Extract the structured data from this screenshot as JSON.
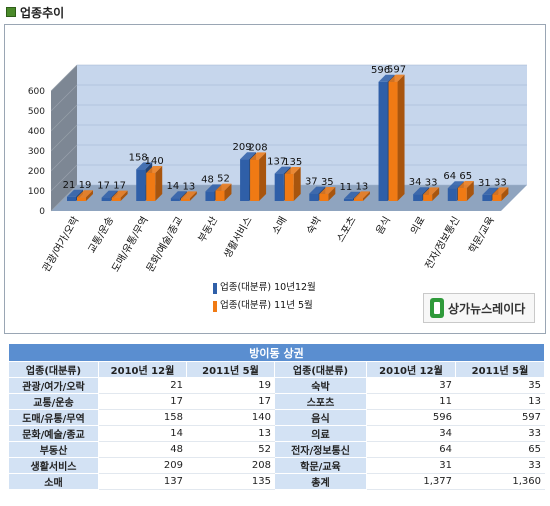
{
  "header": {
    "title": "업종추이"
  },
  "chart_data": {
    "type": "bar",
    "categories": [
      "관광/여가/오락",
      "교통/운송",
      "도매/유통/무역",
      "문화/예술/종교",
      "부동산",
      "생활서비스",
      "소매",
      "숙박",
      "스포츠",
      "음식",
      "의료",
      "전자/정보통신",
      "학문/교육"
    ],
    "series": [
      {
        "name": "업종(대분류) 10년12월",
        "values": [
          21,
          17,
          158,
          14,
          48,
          209,
          137,
          37,
          11,
          596,
          34,
          64,
          31
        ]
      },
      {
        "name": "업종(대분류) 11년 5월",
        "values": [
          19,
          17,
          140,
          13,
          52,
          208,
          135,
          35,
          13,
          597,
          33,
          65,
          33
        ]
      }
    ],
    "yticks": [
      "0",
      "100",
      "200",
      "300",
      "400",
      "500",
      "600"
    ],
    "ylim": [
      0,
      600
    ],
    "legend_position": "bottom-center",
    "colors": {
      "series1": "#2f5fa8",
      "series2": "#f07a14",
      "wall": "#b9cbe6",
      "floor": "#8fa4bf"
    }
  },
  "logo": {
    "text": "상가뉴스레이다"
  },
  "table": {
    "title": "방이동 상권",
    "headers": [
      "업종(대분류)",
      "2010년 12월",
      "2011년 5월",
      "업종(대분류)",
      "2010년 12월",
      "2011년 5월"
    ],
    "rows": [
      [
        "관광/여가/오락",
        "21",
        "19",
        "숙박",
        "37",
        "35"
      ],
      [
        "교통/운송",
        "17",
        "17",
        "스포츠",
        "11",
        "13"
      ],
      [
        "도매/유통/무역",
        "158",
        "140",
        "음식",
        "596",
        "597"
      ],
      [
        "문화/예술/종교",
        "14",
        "13",
        "의료",
        "34",
        "33"
      ],
      [
        "부동산",
        "48",
        "52",
        "전자/정보통신",
        "64",
        "65"
      ],
      [
        "생활서비스",
        "209",
        "208",
        "학문/교육",
        "31",
        "33"
      ],
      [
        "소매",
        "137",
        "135",
        "총계",
        "1,377",
        "1,360"
      ]
    ]
  }
}
